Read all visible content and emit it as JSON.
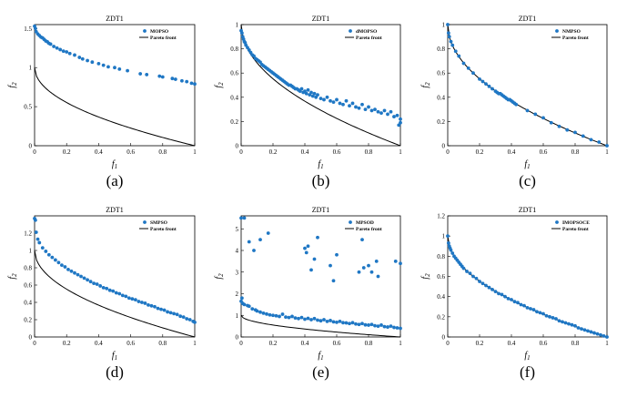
{
  "colors": {
    "marker": "#1f77c4",
    "front": "#000000"
  },
  "chart_data": [
    {
      "type": "scatter",
      "caption": "(a)",
      "title": "ZDT1",
      "xlabel": "f1",
      "ylabel": "f2",
      "xlim": [
        0,
        1
      ],
      "ylim": [
        0,
        1.55
      ],
      "xticks": [
        "0",
        "0.2",
        "0.4",
        "0.6",
        "0.8",
        "1"
      ],
      "yticks": [
        "0",
        "0.5",
        "1",
        "1.5"
      ],
      "ytick_values": [
        0,
        0.5,
        1,
        1.5
      ],
      "legend": [
        "MOPSO",
        "Pareto front"
      ],
      "front_max": 1,
      "series": [
        {
          "name": "MOPSO",
          "x": [
            0.0,
            0.005,
            0.01,
            0.02,
            0.03,
            0.04,
            0.05,
            0.06,
            0.07,
            0.08,
            0.09,
            0.1,
            0.12,
            0.14,
            0.16,
            0.18,
            0.2,
            0.22,
            0.25,
            0.28,
            0.3,
            0.33,
            0.36,
            0.4,
            0.43,
            0.46,
            0.5,
            0.53,
            0.58,
            0.66,
            0.7,
            0.78,
            0.8,
            0.86,
            0.88,
            0.92,
            0.95,
            0.98,
            1.0
          ],
          "y": [
            1.53,
            1.5,
            1.46,
            1.43,
            1.41,
            1.39,
            1.38,
            1.36,
            1.34,
            1.33,
            1.31,
            1.3,
            1.27,
            1.25,
            1.23,
            1.21,
            1.2,
            1.18,
            1.16,
            1.13,
            1.11,
            1.09,
            1.07,
            1.05,
            1.03,
            1.01,
            1.0,
            0.98,
            0.96,
            0.92,
            0.91,
            0.89,
            0.88,
            0.86,
            0.85,
            0.83,
            0.82,
            0.8,
            0.79
          ]
        },
        {
          "name": "Pareto front",
          "function": "1 - sqrt(f1)"
        }
      ]
    },
    {
      "type": "scatter",
      "caption": "(b)",
      "title": "ZDT1",
      "xlabel": "f1",
      "ylabel": "f2",
      "xlim": [
        0,
        1
      ],
      "ylim": [
        0,
        1
      ],
      "xticks": [
        "0",
        "0.2",
        "0.4",
        "0.6",
        "0.8",
        "1"
      ],
      "yticks": [
        "0",
        "0.2",
        "0.4",
        "0.6",
        "0.8",
        "1"
      ],
      "ytick_values": [
        0,
        0.2,
        0.4,
        0.6,
        0.8,
        1
      ],
      "legend": [
        "dMOPSO",
        "Pareto front"
      ],
      "front_max": 1,
      "series": [
        {
          "name": "dMOPSO",
          "x": [
            0.0,
            0.005,
            0.01,
            0.015,
            0.02,
            0.025,
            0.03,
            0.04,
            0.05,
            0.06,
            0.07,
            0.08,
            0.09,
            0.1,
            0.11,
            0.12,
            0.13,
            0.14,
            0.15,
            0.16,
            0.17,
            0.18,
            0.19,
            0.2,
            0.21,
            0.22,
            0.23,
            0.24,
            0.25,
            0.26,
            0.27,
            0.28,
            0.29,
            0.3,
            0.31,
            0.32,
            0.33,
            0.34,
            0.35,
            0.36,
            0.37,
            0.38,
            0.39,
            0.4,
            0.41,
            0.42,
            0.43,
            0.44,
            0.45,
            0.46,
            0.47,
            0.48,
            0.5,
            0.52,
            0.54,
            0.56,
            0.58,
            0.6,
            0.62,
            0.64,
            0.66,
            0.68,
            0.7,
            0.72,
            0.74,
            0.76,
            0.78,
            0.8,
            0.82,
            0.84,
            0.86,
            0.88,
            0.9,
            0.92,
            0.94,
            0.96,
            0.98,
            1.0,
            1.0,
            0.99
          ],
          "y": [
            0.95,
            0.93,
            0.9,
            0.88,
            0.86,
            0.85,
            0.83,
            0.81,
            0.79,
            0.77,
            0.75,
            0.74,
            0.72,
            0.71,
            0.7,
            0.69,
            0.67,
            0.66,
            0.65,
            0.64,
            0.63,
            0.62,
            0.61,
            0.6,
            0.59,
            0.58,
            0.57,
            0.56,
            0.55,
            0.54,
            0.53,
            0.52,
            0.51,
            0.5,
            0.5,
            0.49,
            0.48,
            0.47,
            0.47,
            0.46,
            0.45,
            0.47,
            0.44,
            0.45,
            0.43,
            0.46,
            0.42,
            0.44,
            0.41,
            0.43,
            0.4,
            0.42,
            0.39,
            0.38,
            0.4,
            0.37,
            0.36,
            0.38,
            0.35,
            0.34,
            0.37,
            0.33,
            0.35,
            0.32,
            0.31,
            0.34,
            0.3,
            0.32,
            0.29,
            0.3,
            0.28,
            0.27,
            0.29,
            0.26,
            0.28,
            0.24,
            0.25,
            0.22,
            0.19,
            0.17
          ]
        },
        {
          "name": "Pareto front",
          "function": "1 - sqrt(f1)"
        }
      ]
    },
    {
      "type": "scatter",
      "caption": "(c)",
      "title": "ZDT1",
      "xlabel": "f1",
      "ylabel": "f2",
      "xlim": [
        0,
        1
      ],
      "ylim": [
        0,
        1
      ],
      "xticks": [
        "0",
        "0.2",
        "0.4",
        "0.6",
        "0.8",
        "1"
      ],
      "yticks": [
        "0",
        "0.2",
        "0.4",
        "0.6",
        "0.8",
        "1"
      ],
      "ytick_values": [
        0,
        0.2,
        0.4,
        0.6,
        0.8,
        1
      ],
      "legend": [
        "NMPSO",
        "Pareto front"
      ],
      "front_max": 1,
      "series": [
        {
          "name": "NMPSO",
          "x": [
            0.0,
            0.005,
            0.01,
            0.02,
            0.03,
            0.05,
            0.07,
            0.1,
            0.13,
            0.16,
            0.2,
            0.22,
            0.24,
            0.26,
            0.28,
            0.3,
            0.31,
            0.32,
            0.33,
            0.34,
            0.35,
            0.36,
            0.37,
            0.38,
            0.39,
            0.4,
            0.41,
            0.42,
            0.43,
            0.5,
            0.55,
            0.6,
            0.65,
            0.7,
            0.75,
            0.8,
            0.85,
            0.9,
            0.95,
            1.0
          ],
          "y": [
            1.0,
            0.93,
            0.9,
            0.86,
            0.83,
            0.78,
            0.74,
            0.68,
            0.64,
            0.6,
            0.55,
            0.53,
            0.51,
            0.49,
            0.47,
            0.45,
            0.44,
            0.43,
            0.43,
            0.42,
            0.41,
            0.4,
            0.39,
            0.38,
            0.38,
            0.37,
            0.36,
            0.35,
            0.34,
            0.29,
            0.26,
            0.23,
            0.19,
            0.16,
            0.13,
            0.11,
            0.08,
            0.05,
            0.03,
            0.0
          ]
        },
        {
          "name": "Pareto front",
          "function": "1 - sqrt(f1)"
        }
      ]
    },
    {
      "type": "scatter",
      "caption": "(d)",
      "title": "ZDT1",
      "xlabel": "f1",
      "ylabel": "f2",
      "xlim": [
        0,
        1
      ],
      "ylim": [
        0,
        1.4
      ],
      "xticks": [
        "0",
        "0.2",
        "0.4",
        "0.6",
        "0.8",
        "1"
      ],
      "yticks": [
        "0",
        "0.2",
        "0.4",
        "0.6",
        "0.8",
        "1",
        "1.2"
      ],
      "ytick_values": [
        0,
        0.2,
        0.4,
        0.6,
        0.8,
        1,
        1.2
      ],
      "legend": [
        "SMPSO",
        "Pareto front"
      ],
      "front_max": 1,
      "series": [
        {
          "name": "SMPSO",
          "x": [
            0.0,
            0.005,
            0.01,
            0.02,
            0.03,
            0.05,
            0.07,
            0.09,
            0.11,
            0.13,
            0.15,
            0.17,
            0.19,
            0.21,
            0.23,
            0.25,
            0.27,
            0.29,
            0.31,
            0.33,
            0.35,
            0.37,
            0.39,
            0.41,
            0.43,
            0.45,
            0.47,
            0.49,
            0.51,
            0.53,
            0.55,
            0.57,
            0.59,
            0.61,
            0.63,
            0.65,
            0.67,
            0.69,
            0.71,
            0.73,
            0.75,
            0.77,
            0.79,
            0.81,
            0.83,
            0.85,
            0.87,
            0.89,
            0.91,
            0.93,
            0.95,
            0.97,
            0.99,
            1.0
          ],
          "y": [
            1.37,
            1.35,
            1.21,
            1.13,
            1.09,
            1.03,
            0.99,
            0.95,
            0.92,
            0.89,
            0.86,
            0.83,
            0.81,
            0.78,
            0.76,
            0.74,
            0.72,
            0.7,
            0.68,
            0.66,
            0.64,
            0.62,
            0.61,
            0.59,
            0.57,
            0.56,
            0.54,
            0.53,
            0.51,
            0.5,
            0.48,
            0.47,
            0.45,
            0.44,
            0.43,
            0.41,
            0.4,
            0.39,
            0.37,
            0.36,
            0.35,
            0.33,
            0.32,
            0.31,
            0.29,
            0.28,
            0.27,
            0.26,
            0.24,
            0.23,
            0.21,
            0.2,
            0.18,
            0.17
          ]
        },
        {
          "name": "Pareto front",
          "function": "1 - sqrt(f1)"
        }
      ]
    },
    {
      "type": "scatter",
      "caption": "(e)",
      "title": "ZDT1",
      "xlabel": "f1",
      "ylabel": "f2",
      "xlim": [
        0,
        1
      ],
      "ylim": [
        0,
        5.6
      ],
      "xticks": [
        "0",
        "0.2",
        "0.4",
        "0.6",
        "0.8",
        "1"
      ],
      "yticks": [
        "0",
        "1",
        "2",
        "3",
        "4",
        "5"
      ],
      "ytick_values": [
        0,
        1,
        2,
        3,
        4,
        5
      ],
      "legend": [
        "MPSOD",
        "Pareto front"
      ],
      "front_max": 1,
      "series": [
        {
          "name": "MPSOD",
          "x": [
            0.0,
            0.01,
            0.02,
            0.04,
            0.05,
            0.07,
            0.09,
            0.1,
            0.12,
            0.14,
            0.16,
            0.18,
            0.2,
            0.22,
            0.24,
            0.26,
            0.28,
            0.3,
            0.32,
            0.34,
            0.36,
            0.38,
            0.4,
            0.42,
            0.44,
            0.46,
            0.48,
            0.5,
            0.52,
            0.54,
            0.56,
            0.58,
            0.6,
            0.62,
            0.64,
            0.66,
            0.68,
            0.7,
            0.72,
            0.74,
            0.76,
            0.78,
            0.8,
            0.82,
            0.84,
            0.86,
            0.88,
            0.9,
            0.92,
            0.94,
            0.96,
            0.98,
            1.0,
            0.02,
            0.05,
            0.08,
            0.12,
            0.17,
            0.4,
            0.41,
            0.42,
            0.44,
            0.46,
            0.48,
            0.56,
            0.58,
            0.6,
            0.74,
            0.76,
            0.77,
            0.8,
            0.82,
            0.85,
            0.86,
            0.97,
            1.0,
            0.0,
            0.005
          ],
          "y": [
            1.65,
            1.55,
            1.5,
            1.45,
            1.42,
            1.3,
            1.25,
            1.2,
            1.15,
            1.1,
            1.06,
            1.02,
            1.0,
            0.98,
            0.95,
            1.05,
            0.92,
            0.9,
            0.95,
            0.88,
            0.85,
            0.9,
            0.82,
            0.86,
            0.8,
            0.85,
            0.78,
            0.75,
            0.8,
            0.72,
            0.76,
            0.7,
            0.68,
            0.72,
            0.66,
            0.65,
            0.62,
            0.66,
            0.6,
            0.58,
            0.62,
            0.56,
            0.55,
            0.58,
            0.52,
            0.5,
            0.55,
            0.48,
            0.46,
            0.5,
            0.44,
            0.42,
            0.4,
            5.5,
            4.4,
            4.0,
            4.5,
            4.8,
            4.1,
            3.9,
            4.2,
            3.1,
            3.6,
            4.6,
            3.3,
            2.6,
            3.8,
            3.0,
            4.5,
            3.2,
            3.3,
            3.0,
            3.5,
            2.8,
            3.5,
            3.4,
            5.5,
            1.8
          ]
        },
        {
          "name": "Pareto front",
          "function": "1 - sqrt(f1)"
        }
      ]
    },
    {
      "type": "scatter",
      "caption": "(f)",
      "title": "ZDT1",
      "xlabel": "f1",
      "ylabel": "f2",
      "xlim": [
        0,
        1
      ],
      "ylim": [
        0,
        1.2
      ],
      "xticks": [
        "0",
        "0.2",
        "0.4",
        "0.6",
        "0.8",
        "1"
      ],
      "yticks": [
        "0",
        "0.2",
        "0.4",
        "0.6",
        "0.8",
        "1",
        "1.2"
      ],
      "ytick_values": [
        0,
        0.2,
        0.4,
        0.6,
        0.8,
        1,
        1.2
      ],
      "legend": [
        "IMOPSOCE",
        "Pareto front"
      ],
      "front_max": 1,
      "series": [
        {
          "name": "IMOPSOCE",
          "x": [
            0.0,
            0.005,
            0.01,
            0.015,
            0.02,
            0.03,
            0.04,
            0.05,
            0.06,
            0.07,
            0.08,
            0.09,
            0.1,
            0.12,
            0.14,
            0.16,
            0.18,
            0.2,
            0.22,
            0.24,
            0.26,
            0.28,
            0.3,
            0.32,
            0.34,
            0.36,
            0.38,
            0.4,
            0.42,
            0.44,
            0.46,
            0.48,
            0.5,
            0.52,
            0.54,
            0.56,
            0.58,
            0.6,
            0.62,
            0.64,
            0.66,
            0.68,
            0.7,
            0.72,
            0.74,
            0.76,
            0.78,
            0.8,
            0.82,
            0.84,
            0.86,
            0.88,
            0.9,
            0.92,
            0.94,
            0.96,
            0.98,
            1.0
          ],
          "y": [
            1.0,
            0.93,
            0.9,
            0.88,
            0.86,
            0.83,
            0.8,
            0.78,
            0.76,
            0.74,
            0.72,
            0.7,
            0.68,
            0.65,
            0.63,
            0.6,
            0.58,
            0.55,
            0.53,
            0.51,
            0.49,
            0.47,
            0.45,
            0.43,
            0.42,
            0.4,
            0.38,
            0.37,
            0.35,
            0.34,
            0.32,
            0.31,
            0.29,
            0.28,
            0.27,
            0.25,
            0.24,
            0.23,
            0.21,
            0.2,
            0.19,
            0.18,
            0.16,
            0.15,
            0.14,
            0.13,
            0.12,
            0.11,
            0.09,
            0.08,
            0.07,
            0.06,
            0.05,
            0.04,
            0.03,
            0.02,
            0.01,
            0.0
          ]
        },
        {
          "name": "Pareto front",
          "function": "1 - sqrt(f1)"
        }
      ]
    }
  ]
}
